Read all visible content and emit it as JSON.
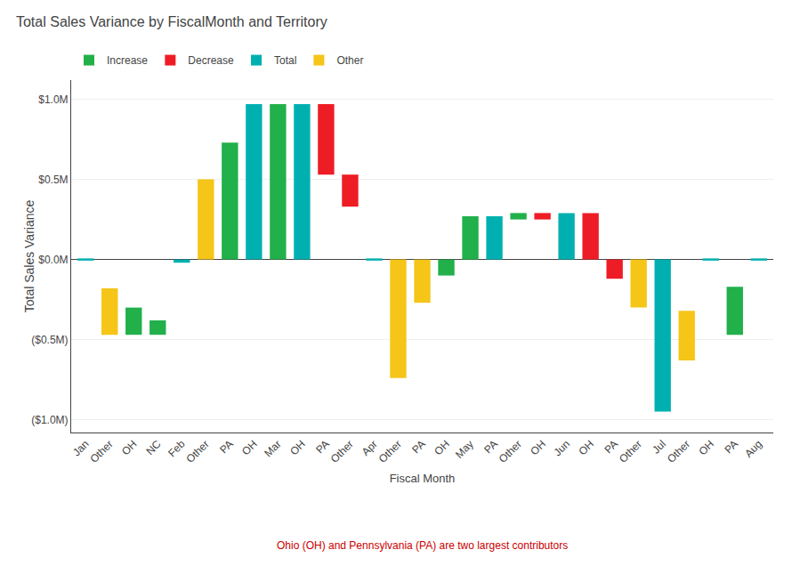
{
  "chart_data": {
    "type": "bar",
    "title": "Total Sales Variance by FiscalMonth and Territory",
    "xlabel": "Fiscal Month",
    "ylabel": "Total Sales Variance",
    "categories": [
      "Jan",
      "Other",
      "OH",
      "NC",
      "Feb",
      "Other",
      "PA",
      "OH",
      "Mar",
      "OH",
      "PA",
      "Other",
      "Apr",
      "Other",
      "PA",
      "OH",
      "May",
      "PA",
      "Other",
      "OH",
      "Jun",
      "OH",
      "PA",
      "Other",
      "Jul",
      "Other",
      "OH",
      "PA",
      "Aug"
    ],
    "series": [
      {
        "name": "Increase",
        "color": "#21B04A",
        "base": [
          null,
          null,
          -0.47,
          -0.47,
          null,
          null,
          0.0,
          null,
          0.0,
          null,
          null,
          null,
          null,
          null,
          null,
          -0.1,
          0.0,
          null,
          0.25,
          null,
          null,
          null,
          null,
          null,
          null,
          null,
          null,
          -0.47,
          null
        ],
        "values": [
          null,
          null,
          -0.3,
          -0.38,
          null,
          null,
          0.73,
          null,
          0.97,
          null,
          null,
          null,
          null,
          null,
          null,
          0.0,
          0.27,
          null,
          0.29,
          null,
          null,
          null,
          null,
          null,
          null,
          null,
          null,
          -0.17,
          null
        ]
      },
      {
        "name": "Decrease",
        "color": "#EE1C25",
        "base": [
          null,
          null,
          null,
          null,
          null,
          null,
          null,
          null,
          null,
          null,
          0.53,
          0.33,
          null,
          null,
          null,
          null,
          null,
          null,
          null,
          0.25,
          null,
          0.0,
          -0.12,
          null,
          null,
          null,
          null,
          null,
          null
        ],
        "values": [
          null,
          null,
          null,
          null,
          null,
          null,
          null,
          null,
          null,
          null,
          0.97,
          0.53,
          null,
          null,
          null,
          null,
          null,
          null,
          null,
          0.29,
          null,
          0.29,
          0.0,
          null,
          null,
          null,
          null,
          null,
          null
        ]
      },
      {
        "name": "Total",
        "color": "#00B0B0",
        "base": [
          0.0,
          null,
          null,
          null,
          -0.02,
          null,
          null,
          0.0,
          null,
          0.0,
          null,
          null,
          0.0,
          null,
          null,
          null,
          null,
          0.0,
          null,
          null,
          0.0,
          null,
          null,
          null,
          -0.95,
          null,
          0.0,
          null,
          0.0
        ],
        "values": [
          0.0,
          null,
          null,
          null,
          0.0,
          null,
          null,
          0.97,
          null,
          0.97,
          null,
          null,
          0.0,
          null,
          null,
          null,
          null,
          0.27,
          null,
          null,
          0.29,
          null,
          null,
          null,
          0.0,
          null,
          0.0,
          null,
          0.0
        ]
      },
      {
        "name": "Other",
        "color": "#F5C518",
        "base": [
          null,
          -0.47,
          null,
          null,
          null,
          0.0,
          null,
          null,
          null,
          null,
          null,
          null,
          null,
          -0.74,
          -0.27,
          null,
          null,
          null,
          null,
          null,
          null,
          null,
          null,
          -0.3,
          null,
          -0.63,
          null,
          null,
          null
        ],
        "values": [
          null,
          -0.18,
          null,
          null,
          null,
          0.5,
          null,
          null,
          null,
          null,
          null,
          null,
          null,
          0.0,
          0.0,
          null,
          null,
          null,
          null,
          null,
          null,
          null,
          null,
          0.0,
          null,
          -0.32,
          null,
          null,
          null
        ]
      }
    ],
    "ylim": [
      -1.08,
      1.12
    ],
    "yticks": [
      {
        "value": -1.0,
        "label": "($1.0M)"
      },
      {
        "value": -0.5,
        "label": "($0.5M)"
      },
      {
        "value": 0.0,
        "label": "$0.0M"
      },
      {
        "value": 0.5,
        "label": "$0.5M"
      },
      {
        "value": 1.0,
        "label": "$1.0M"
      }
    ],
    "grid": true,
    "legend": "upper left",
    "annotations": [
      {
        "text": "Ohio (OH) and Pennsylvania (PA) are two largest contributors",
        "color": "#CC0000"
      }
    ]
  }
}
